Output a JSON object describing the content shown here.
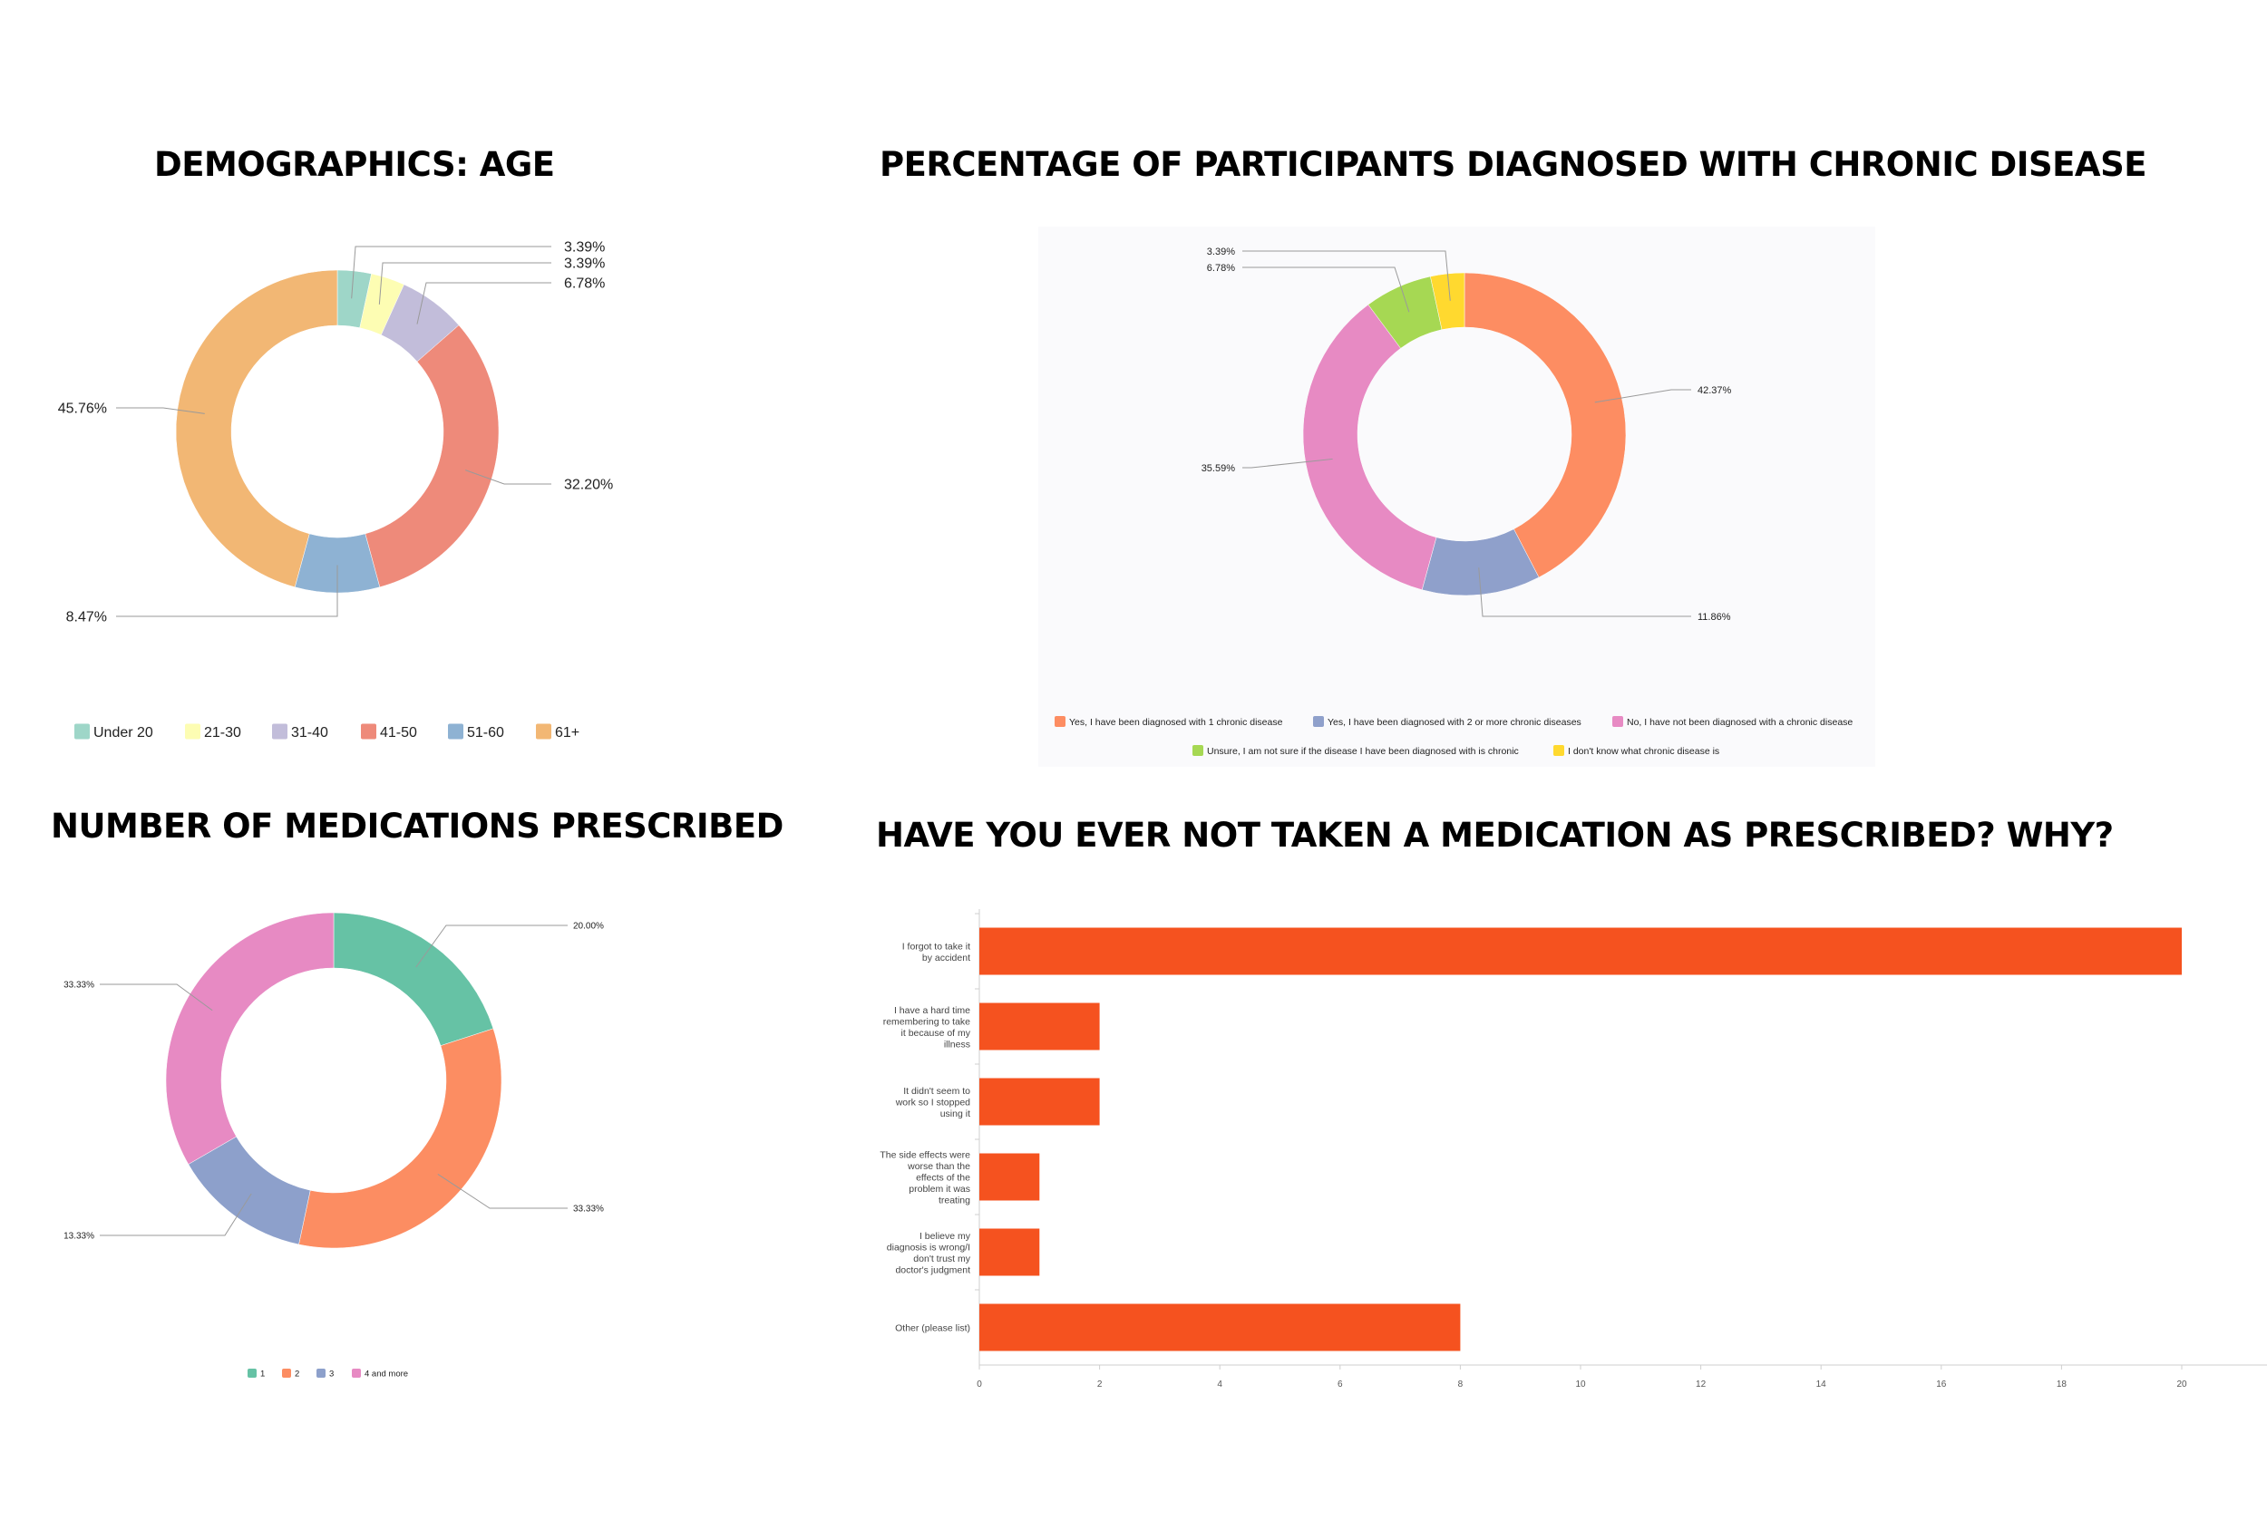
{
  "charts": {
    "age": {
      "title": "DEMOGRAPHICS: AGE"
    },
    "chronic": {
      "title": "PERCENTAGE OF PARTICIPANTS DIAGNOSED WITH CHRONIC DISEASE"
    },
    "meds": {
      "title": "NUMBER OF MEDICATIONS PRESCRIBED"
    },
    "adherence": {
      "title": "HAVE YOU EVER NOT TAKEN A MEDICATION AS PRESCRIBED? WHY?"
    }
  },
  "chart_data": [
    {
      "type": "pie",
      "title": "DEMOGRAPHICS: AGE",
      "donut": true,
      "legend_position": "bottom",
      "categories": [
        "Under 20",
        "21-30",
        "31-40",
        "41-50",
        "51-60",
        "61+"
      ],
      "values": [
        3.39,
        3.39,
        6.78,
        32.2,
        8.47,
        45.76
      ],
      "labels": [
        "3.39%",
        "3.39%",
        "6.78%",
        "32.20%",
        "8.47%",
        "45.76%"
      ],
      "colors": [
        "#9ed6c8",
        "#fdfdb3",
        "#c2bdda",
        "#ee8a7a",
        "#8eb2d3",
        "#f2b774"
      ]
    },
    {
      "type": "pie",
      "title": "PERCENTAGE OF PARTICIPANTS DIAGNOSED WITH CHRONIC DISEASE",
      "donut": true,
      "legend_position": "bottom",
      "categories": [
        "Yes, I have been diagnosed with 1 chronic disease",
        "Yes, I have been diagnosed with 2 or more chronic diseases",
        "No, I have not been diagnosed with a chronic disease",
        "Unsure, I am not sure if the disease I have been diagnosed with is chronic",
        "I don't know what chronic disease is"
      ],
      "values": [
        42.37,
        11.86,
        35.59,
        6.78,
        3.39
      ],
      "labels": [
        "42.37%",
        "11.86%",
        "35.59%",
        "6.78%",
        "3.39%"
      ],
      "colors": [
        "#fd8d62",
        "#8fa0cb",
        "#e78ac3",
        "#a6d853",
        "#ffd92f"
      ]
    },
    {
      "type": "pie",
      "title": "NUMBER OF MEDICATIONS PRESCRIBED",
      "donut": true,
      "legend_position": "bottom",
      "categories": [
        "1",
        "2",
        "3",
        "4 and more"
      ],
      "values": [
        20.0,
        33.33,
        13.33,
        33.33
      ],
      "labels": [
        "20.00%",
        "33.33%",
        "13.33%",
        "33.33%"
      ],
      "colors": [
        "#66c2a5",
        "#fc8d62",
        "#8da0cb",
        "#e78ac3"
      ]
    },
    {
      "type": "bar",
      "orientation": "horizontal",
      "title": "HAVE YOU EVER NOT TAKEN A MEDICATION AS PRESCRIBED? WHY?",
      "categories": [
        "I forgot to take it by accident",
        "I have a hard time remembering to take it because of my illness",
        "It didn't seem to work so I stopped using it",
        "The side effects were worse than the effects of the problem it was treating",
        "I believe my diagnosis is wrong/I don't trust my doctor's judgment",
        "Other (please list)"
      ],
      "values": [
        20,
        2,
        2,
        1,
        1,
        8
      ],
      "xlim": [
        0,
        22
      ],
      "xticks": [
        0,
        2,
        4,
        6,
        8,
        10,
        12,
        14,
        16,
        18,
        20
      ],
      "grid": false,
      "color": "#f5521f"
    }
  ]
}
